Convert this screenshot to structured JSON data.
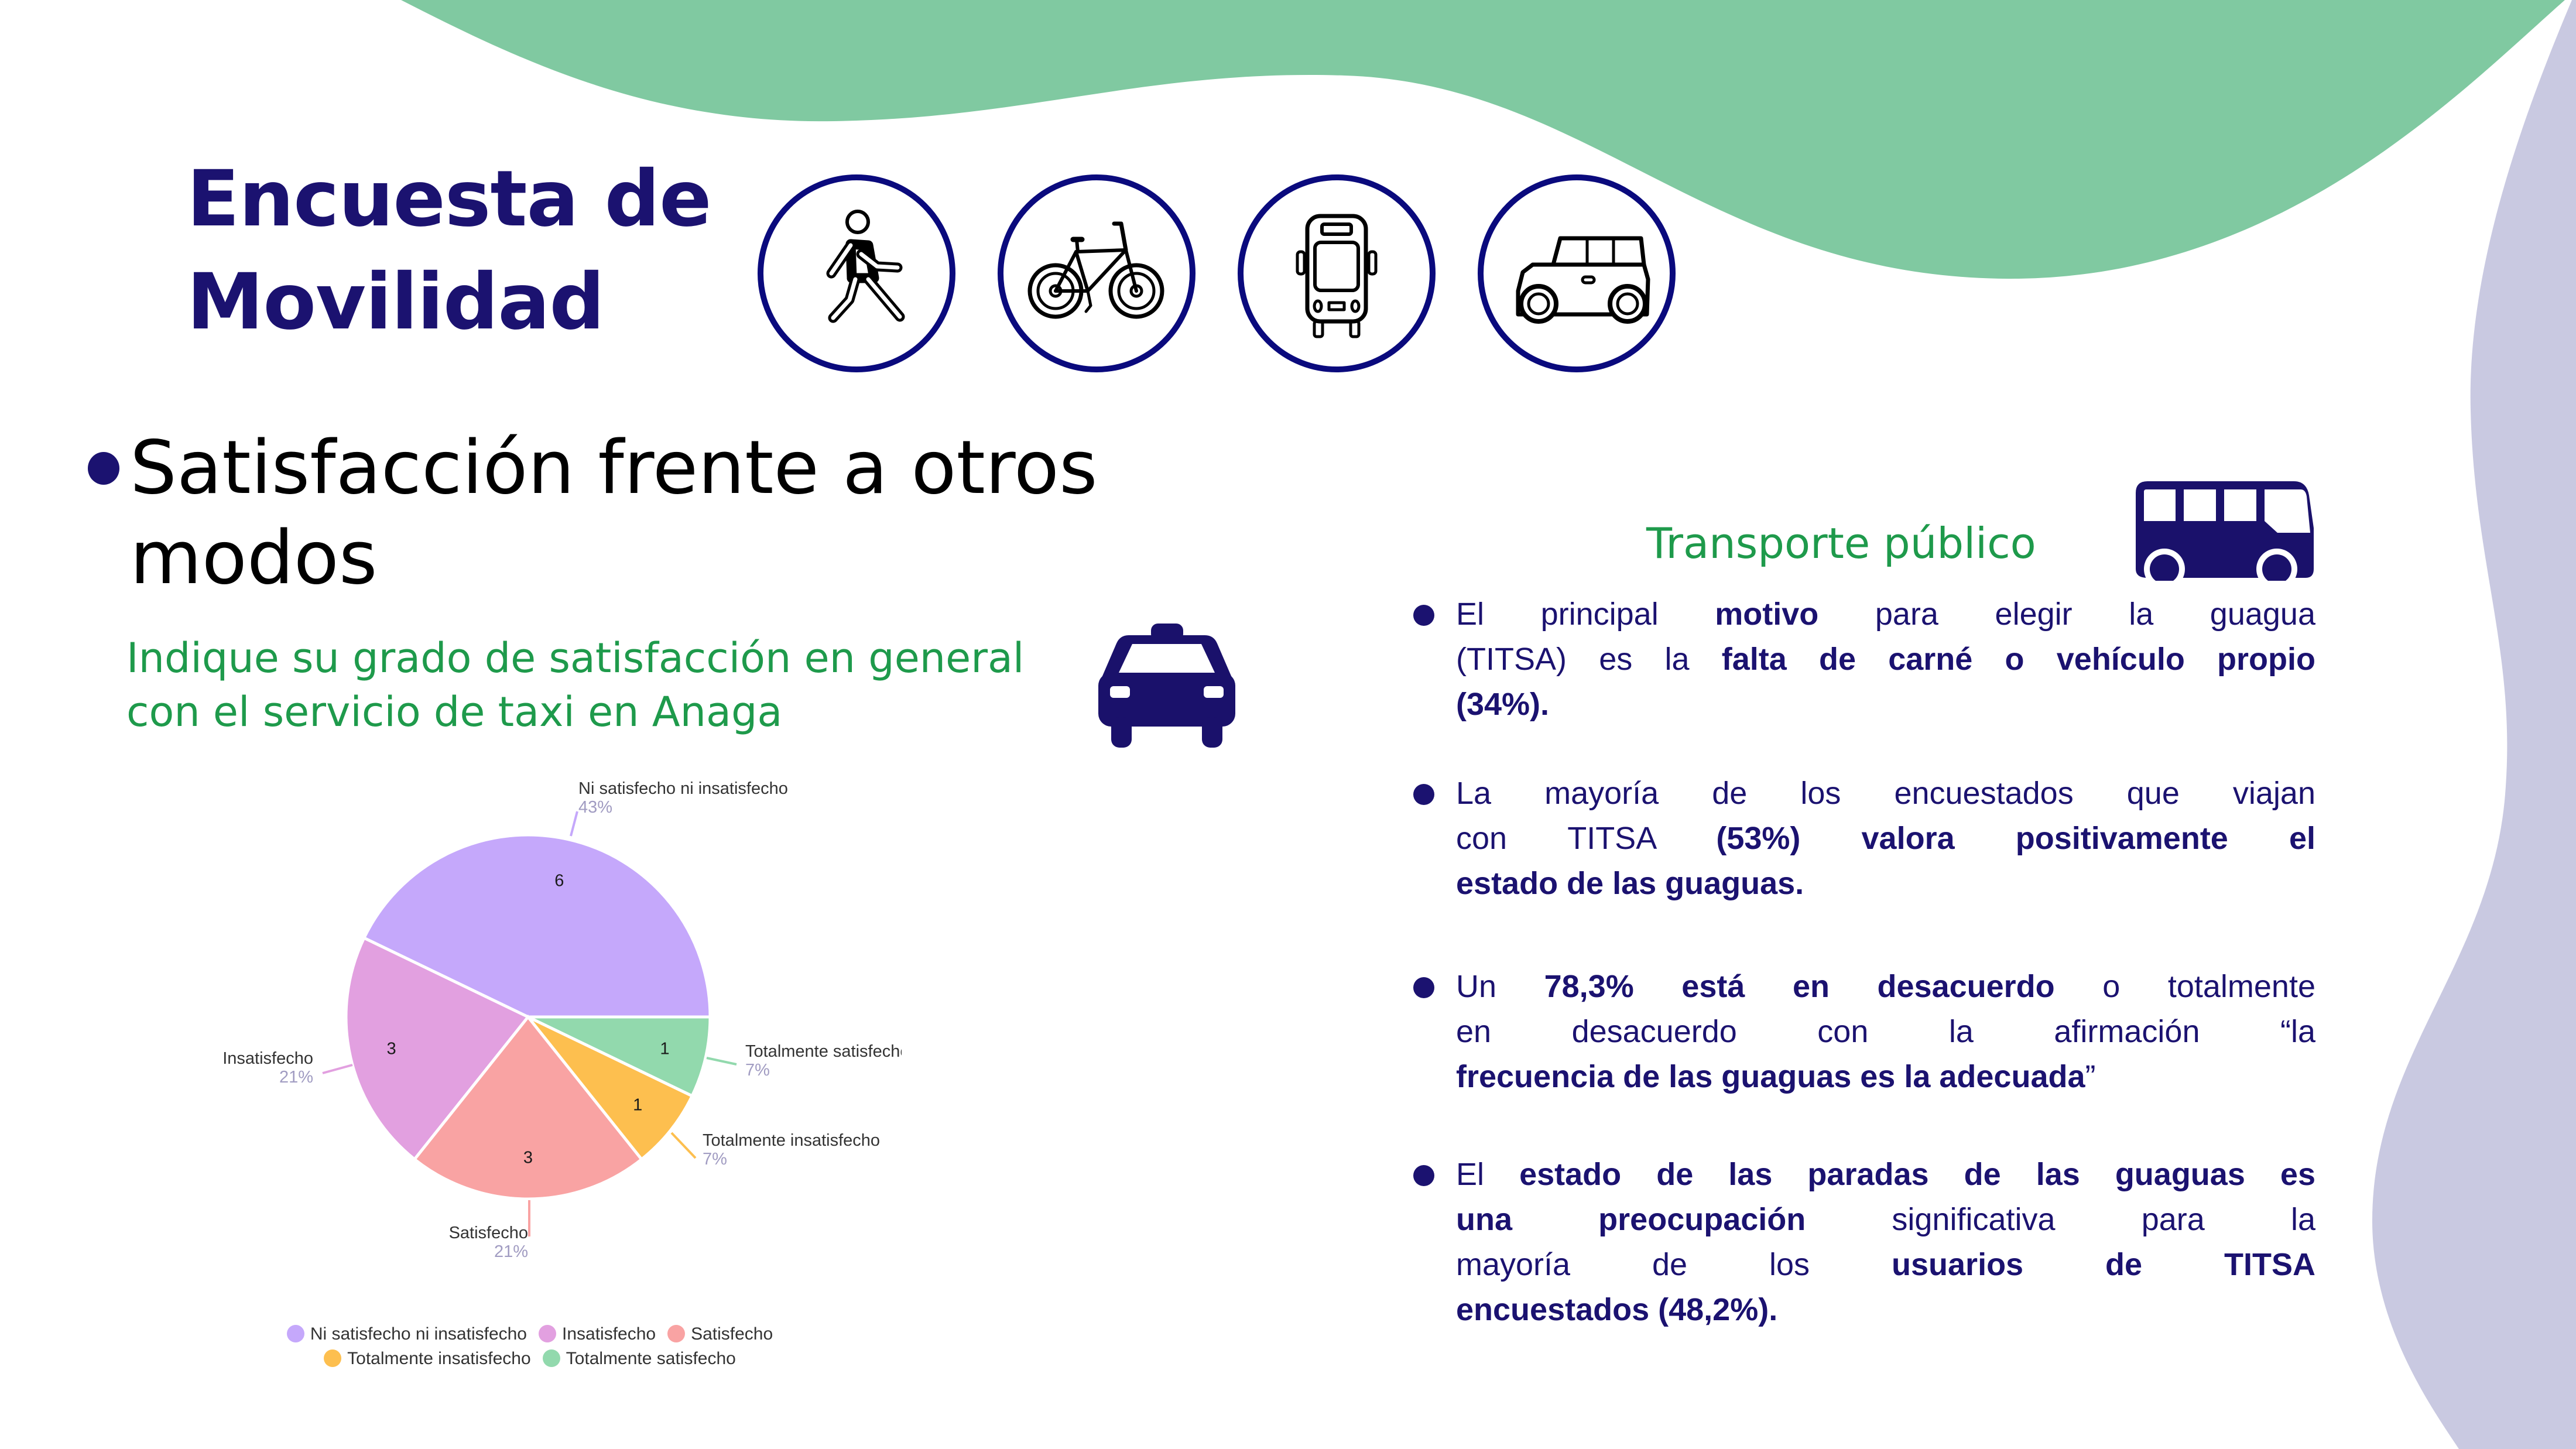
{
  "header": {
    "title_line1": "Encuesta de",
    "title_line2": "Movilidad"
  },
  "mode_icons": [
    {
      "icon": "walking-person-icon"
    },
    {
      "icon": "bicycle-icon"
    },
    {
      "icon": "bus-front-icon"
    },
    {
      "icon": "car-icon"
    }
  ],
  "section": {
    "heading_line1": "Satisfacción frente a otros",
    "heading_line2": "modos",
    "question_line1": "Indique su grado de satisfacción en general",
    "question_line2": "con el servicio de taxi en Anaga",
    "question_icon": "taxi-icon"
  },
  "chart_data": {
    "type": "pie",
    "title": "Indique su grado de satisfacción en general con el servicio de taxi en Anaga",
    "categories": [
      "Ni satisfecho ni insatisfecho",
      "Insatisfecho",
      "Satisfecho",
      "Totalmente insatisfecho",
      "Totalmente satisfecho"
    ],
    "values": [
      6,
      3,
      3,
      1,
      1
    ],
    "value_labels": [
      "6",
      "3",
      "3",
      "1",
      "1"
    ],
    "percent_labels": [
      "43%",
      "21%",
      "21%",
      "7%",
      "7%"
    ],
    "colors": [
      "#c5a8fb",
      "#e2a0e0",
      "#f9a3a3",
      "#fdbf4f",
      "#92d9ad"
    ],
    "legend": {
      "placement": "bottom",
      "entries": [
        "Ni satisfecho ni insatisfecho",
        "Insatisfecho",
        "Satisfecho",
        "Totalmente insatisfecho",
        "Totalmente satisfecho"
      ]
    }
  },
  "public_transport": {
    "title": "Transporte público",
    "icon": "bus-side-icon",
    "bullets": [
      {
        "lines": [
          [
            {
              "text": "El principal ",
              "bold": false
            },
            {
              "text": "motivo",
              "bold": true
            },
            {
              "text": " para elegir la guagua",
              "bold": false
            }
          ],
          [
            {
              "text": "(TITSA) es la ",
              "bold": false
            },
            {
              "text": "falta de carné o vehículo propio",
              "bold": true
            }
          ],
          [
            {
              "text": "(34%).",
              "bold": true
            }
          ]
        ]
      },
      {
        "lines": [
          [
            {
              "text": "La mayoría de los encuestados que viajan",
              "bold": false
            }
          ],
          [
            {
              "text": "con TITSA ",
              "bold": false
            },
            {
              "text": "(53%) valora positivamente el",
              "bold": true
            }
          ],
          [
            {
              "text": "estado de las guaguas.",
              "bold": true
            }
          ]
        ]
      },
      {
        "lines": [
          [
            {
              "text": "Un ",
              "bold": false
            },
            {
              "text": "78,3% está en desacuerdo",
              "bold": true
            },
            {
              "text": " o totalmente",
              "bold": false
            }
          ],
          [
            {
              "text": "en desacuerdo con la afirmación “la",
              "bold": false
            }
          ],
          [
            {
              "text": "frecuencia de las guaguas es la adecuada",
              "bold": true
            },
            {
              "text": "”",
              "bold": false
            }
          ]
        ]
      },
      {
        "lines": [
          [
            {
              "text": "El ",
              "bold": false
            },
            {
              "text": "estado de las paradas de las guaguas es",
              "bold": true
            }
          ],
          [
            {
              "text": "una preocupación",
              "bold": true
            },
            {
              "text": " significativa para la",
              "bold": false
            }
          ],
          [
            {
              "text": "mayoría de los ",
              "bold": false
            },
            {
              "text": "usuarios de TITSA",
              "bold": true
            }
          ],
          [
            {
              "text": "encuestados (48,2%).",
              "bold": true
            }
          ]
        ]
      }
    ]
  },
  "colors": {
    "navy": "#1b1270",
    "green_text": "#1e9a4b",
    "green_wave": "#80c9a1",
    "lavender_wave": "#c9c9e1",
    "icon_ring": "#0a0a7d"
  }
}
